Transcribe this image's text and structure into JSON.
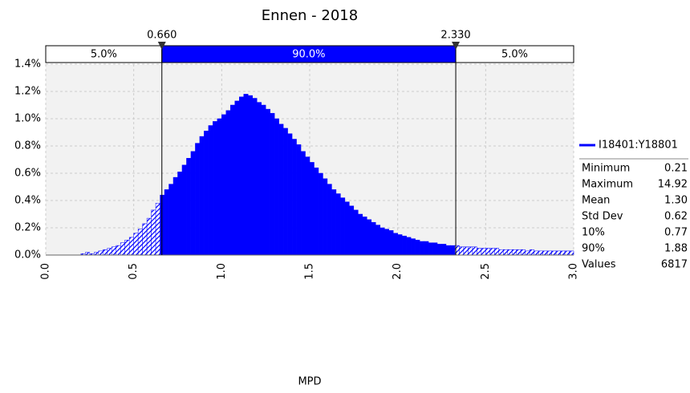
{
  "chart_data": {
    "type": "histogram",
    "title": "Ennen - 2018",
    "x_label": "MPD",
    "color": "#0000ff",
    "series_name": "I18401:Y18801",
    "bins": [
      0.2,
      0.225,
      0.25,
      0.275,
      0.3,
      0.325,
      0.35,
      0.375,
      0.4,
      0.425,
      0.45,
      0.475,
      0.5,
      0.525,
      0.55,
      0.575,
      0.6,
      0.625,
      0.65,
      0.675,
      0.7,
      0.725,
      0.75,
      0.775,
      0.8,
      0.825,
      0.85,
      0.875,
      0.9,
      0.925,
      0.95,
      0.975,
      1.0,
      1.025,
      1.05,
      1.075,
      1.1,
      1.125,
      1.15,
      1.175,
      1.2,
      1.225,
      1.25,
      1.275,
      1.3,
      1.325,
      1.35,
      1.375,
      1.4,
      1.425,
      1.45,
      1.475,
      1.5,
      1.525,
      1.55,
      1.575,
      1.6,
      1.625,
      1.65,
      1.675,
      1.7,
      1.725,
      1.75,
      1.775,
      1.8,
      1.825,
      1.85,
      1.875,
      1.9,
      1.925,
      1.95,
      1.975,
      2.0,
      2.025,
      2.05,
      2.075,
      2.1,
      2.125,
      2.15,
      2.175,
      2.2,
      2.225,
      2.25,
      2.275,
      2.3,
      2.325,
      2.35,
      2.375,
      2.4,
      2.425,
      2.45,
      2.475,
      2.5,
      2.525,
      2.55,
      2.575,
      2.6,
      2.625,
      2.65,
      2.675,
      2.7,
      2.725,
      2.75,
      2.775,
      2.8,
      2.825,
      2.85,
      2.875,
      2.9,
      2.925,
      2.95,
      2.975,
      3.0
    ],
    "values": [
      0.01,
      0.02,
      0.01,
      0.02,
      0.03,
      0.04,
      0.05,
      0.06,
      0.07,
      0.09,
      0.11,
      0.13,
      0.16,
      0.19,
      0.23,
      0.27,
      0.33,
      0.38,
      0.44,
      0.48,
      0.52,
      0.57,
      0.61,
      0.66,
      0.71,
      0.76,
      0.82,
      0.87,
      0.91,
      0.95,
      0.98,
      1.0,
      1.03,
      1.06,
      1.1,
      1.13,
      1.16,
      1.18,
      1.17,
      1.15,
      1.12,
      1.1,
      1.07,
      1.04,
      1.0,
      0.96,
      0.93,
      0.89,
      0.85,
      0.81,
      0.76,
      0.72,
      0.68,
      0.64,
      0.6,
      0.56,
      0.52,
      0.48,
      0.45,
      0.42,
      0.39,
      0.36,
      0.33,
      0.3,
      0.28,
      0.26,
      0.24,
      0.22,
      0.2,
      0.19,
      0.18,
      0.16,
      0.15,
      0.14,
      0.13,
      0.12,
      0.11,
      0.1,
      0.1,
      0.09,
      0.09,
      0.08,
      0.08,
      0.07,
      0.07,
      0.07,
      0.06,
      0.06,
      0.06,
      0.06,
      0.05,
      0.05,
      0.05,
      0.05,
      0.05,
      0.04,
      0.04,
      0.04,
      0.04,
      0.04,
      0.04,
      0.03,
      0.04,
      0.03,
      0.03,
      0.03,
      0.03,
      0.03,
      0.03,
      0.03,
      0.03,
      0.03
    ],
    "xlim": [
      0,
      3
    ],
    "xticks": [
      {
        "value": 0,
        "label": "0.0"
      },
      {
        "value": 0.5,
        "label": "0.5"
      },
      {
        "value": 1,
        "label": "1.0"
      },
      {
        "value": 1.5,
        "label": "1.5"
      },
      {
        "value": 2,
        "label": "2.0"
      },
      {
        "value": 2.5,
        "label": "2.5"
      },
      {
        "value": 3,
        "label": "3.0"
      }
    ],
    "ylim": [
      0,
      1.4
    ],
    "yticks": [
      {
        "value": 0,
        "label": "0.0%"
      },
      {
        "value": 0.2,
        "label": "0.2%"
      },
      {
        "value": 0.4,
        "label": "0.4%"
      },
      {
        "value": 0.6,
        "label": "0.6%"
      },
      {
        "value": 0.8,
        "label": "0.8%"
      },
      {
        "value": 1.0,
        "label": "1.0%"
      },
      {
        "value": 1.2,
        "label": "1.2%"
      },
      {
        "value": 1.4,
        "label": "1.4%"
      }
    ],
    "grid": true,
    "delimiters": [
      {
        "value": 0.66,
        "label": "0.660"
      },
      {
        "value": 2.33,
        "label": "2.330"
      }
    ],
    "region_values": [
      5,
      90,
      5
    ],
    "region_labels": [
      "5.0%",
      "90.0%",
      "5.0%"
    ],
    "stats": [
      [
        "Minimum",
        "0.21"
      ],
      [
        "Maximum",
        "14.92"
      ],
      [
        "Mean",
        "1.30"
      ],
      [
        "Std Dev",
        "0.62"
      ],
      [
        "10%",
        "0.77"
      ],
      [
        "90%",
        "1.88"
      ],
      [
        "Values",
        "6817"
      ]
    ]
  }
}
